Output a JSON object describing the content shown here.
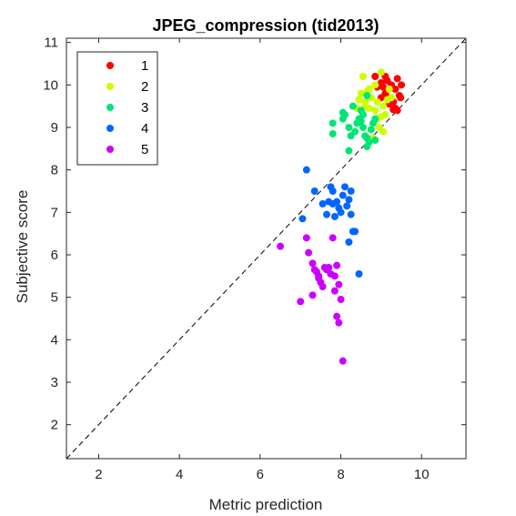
{
  "chart_data": {
    "type": "scatter",
    "title": "JPEG_compression (tid2013)",
    "xlabel": "Metric prediction",
    "ylabel": "Subjective score",
    "xlim": [
      1.2,
      11.1
    ],
    "ylim": [
      1.2,
      11.1
    ],
    "xticks": [
      2,
      4,
      6,
      8,
      10
    ],
    "yticks": [
      2,
      3,
      4,
      5,
      6,
      7,
      8,
      9,
      10,
      11
    ],
    "grid": false,
    "legend_position": "top-left",
    "reference_line": "y = x (dashed)",
    "series": [
      {
        "name": "1",
        "color": "#ff0000",
        "points": [
          [
            8.85,
            10.2
          ],
          [
            9.0,
            10.05
          ],
          [
            9.05,
            9.95
          ],
          [
            9.15,
            10.1
          ],
          [
            9.25,
            10.0
          ],
          [
            9.35,
            9.9
          ],
          [
            9.4,
            10.15
          ],
          [
            9.45,
            9.75
          ],
          [
            9.5,
            10.0
          ],
          [
            9.3,
            9.6
          ],
          [
            9.2,
            9.7
          ],
          [
            9.1,
            9.8
          ],
          [
            9.35,
            9.45
          ],
          [
            9.0,
            9.7
          ],
          [
            8.9,
            9.95
          ],
          [
            9.2,
            9.55
          ],
          [
            9.4,
            9.4
          ],
          [
            9.3,
            9.42
          ],
          [
            9.1,
            10.2
          ],
          [
            9.48,
            9.7
          ]
        ]
      },
      {
        "name": "2",
        "color": "#ccff00",
        "points": [
          [
            8.55,
            10.2
          ],
          [
            9.0,
            10.3
          ],
          [
            8.85,
            10.0
          ],
          [
            8.7,
            9.9
          ],
          [
            8.5,
            9.8
          ],
          [
            8.45,
            9.65
          ],
          [
            8.6,
            9.6
          ],
          [
            8.75,
            9.7
          ],
          [
            8.9,
            9.6
          ],
          [
            9.05,
            9.5
          ],
          [
            9.2,
            9.9
          ],
          [
            9.25,
            9.7
          ],
          [
            9.1,
            9.3
          ],
          [
            9.0,
            9.25
          ],
          [
            8.85,
            9.4
          ],
          [
            8.7,
            9.45
          ],
          [
            8.95,
            9.0
          ],
          [
            9.05,
            8.9
          ],
          [
            8.8,
            8.75
          ],
          [
            8.4,
            9.45
          ],
          [
            8.3,
            9.5
          ],
          [
            8.65,
            9.85
          ],
          [
            9.15,
            9.65
          ],
          [
            8.6,
            9.5
          ],
          [
            8.9,
            9.2
          ]
        ]
      },
      {
        "name": "3",
        "color": "#00e676",
        "points": [
          [
            7.8,
            9.1
          ],
          [
            7.8,
            8.85
          ],
          [
            8.05,
            9.2
          ],
          [
            8.05,
            9.35
          ],
          [
            8.2,
            9.0
          ],
          [
            8.25,
            8.8
          ],
          [
            8.35,
            8.9
          ],
          [
            8.4,
            9.1
          ],
          [
            8.45,
            9.2
          ],
          [
            8.5,
            9.15
          ],
          [
            8.55,
            9.0
          ],
          [
            8.6,
            8.8
          ],
          [
            8.65,
            8.75
          ],
          [
            8.7,
            8.65
          ],
          [
            8.75,
            8.95
          ],
          [
            8.8,
            9.1
          ],
          [
            8.85,
            9.2
          ],
          [
            8.5,
            9.4
          ],
          [
            8.65,
            9.75
          ],
          [
            8.3,
            9.5
          ],
          [
            8.2,
            8.45
          ],
          [
            8.65,
            8.55
          ],
          [
            8.85,
            8.7
          ],
          [
            8.1,
            9.3
          ],
          [
            8.55,
            9.3
          ]
        ]
      },
      {
        "name": "4",
        "color": "#0066ff",
        "points": [
          [
            7.15,
            8.0
          ],
          [
            7.35,
            7.5
          ],
          [
            7.55,
            7.2
          ],
          [
            7.7,
            7.25
          ],
          [
            7.75,
            7.6
          ],
          [
            7.8,
            7.5
          ],
          [
            7.8,
            7.2
          ],
          [
            7.9,
            7.25
          ],
          [
            8.0,
            7.0
          ],
          [
            8.05,
            7.4
          ],
          [
            8.1,
            7.6
          ],
          [
            8.15,
            7.15
          ],
          [
            8.2,
            7.3
          ],
          [
            8.25,
            6.95
          ],
          [
            8.3,
            6.55
          ],
          [
            8.35,
            6.55
          ],
          [
            8.2,
            6.3
          ],
          [
            7.65,
            6.95
          ],
          [
            7.85,
            6.9
          ],
          [
            8.45,
            5.55
          ],
          [
            7.05,
            6.85
          ],
          [
            8.25,
            7.5
          ],
          [
            7.95,
            7.1
          ]
        ]
      },
      {
        "name": "5",
        "color": "#cc00ff",
        "points": [
          [
            6.5,
            6.2
          ],
          [
            7.15,
            6.4
          ],
          [
            7.2,
            6.05
          ],
          [
            7.3,
            5.8
          ],
          [
            7.35,
            5.65
          ],
          [
            7.4,
            5.6
          ],
          [
            7.45,
            5.45
          ],
          [
            7.5,
            5.35
          ],
          [
            7.55,
            5.25
          ],
          [
            7.6,
            5.7
          ],
          [
            7.65,
            5.65
          ],
          [
            7.7,
            5.7
          ],
          [
            7.75,
            5.55
          ],
          [
            7.85,
            5.5
          ],
          [
            7.9,
            5.75
          ],
          [
            7.95,
            5.3
          ],
          [
            7.85,
            5.15
          ],
          [
            8.0,
            4.95
          ],
          [
            7.9,
            4.55
          ],
          [
            7.95,
            4.4
          ],
          [
            7.3,
            5.05
          ],
          [
            7.0,
            4.9
          ],
          [
            7.8,
            6.4
          ],
          [
            8.05,
            3.5
          ],
          [
            7.45,
            5.5
          ]
        ]
      }
    ]
  }
}
